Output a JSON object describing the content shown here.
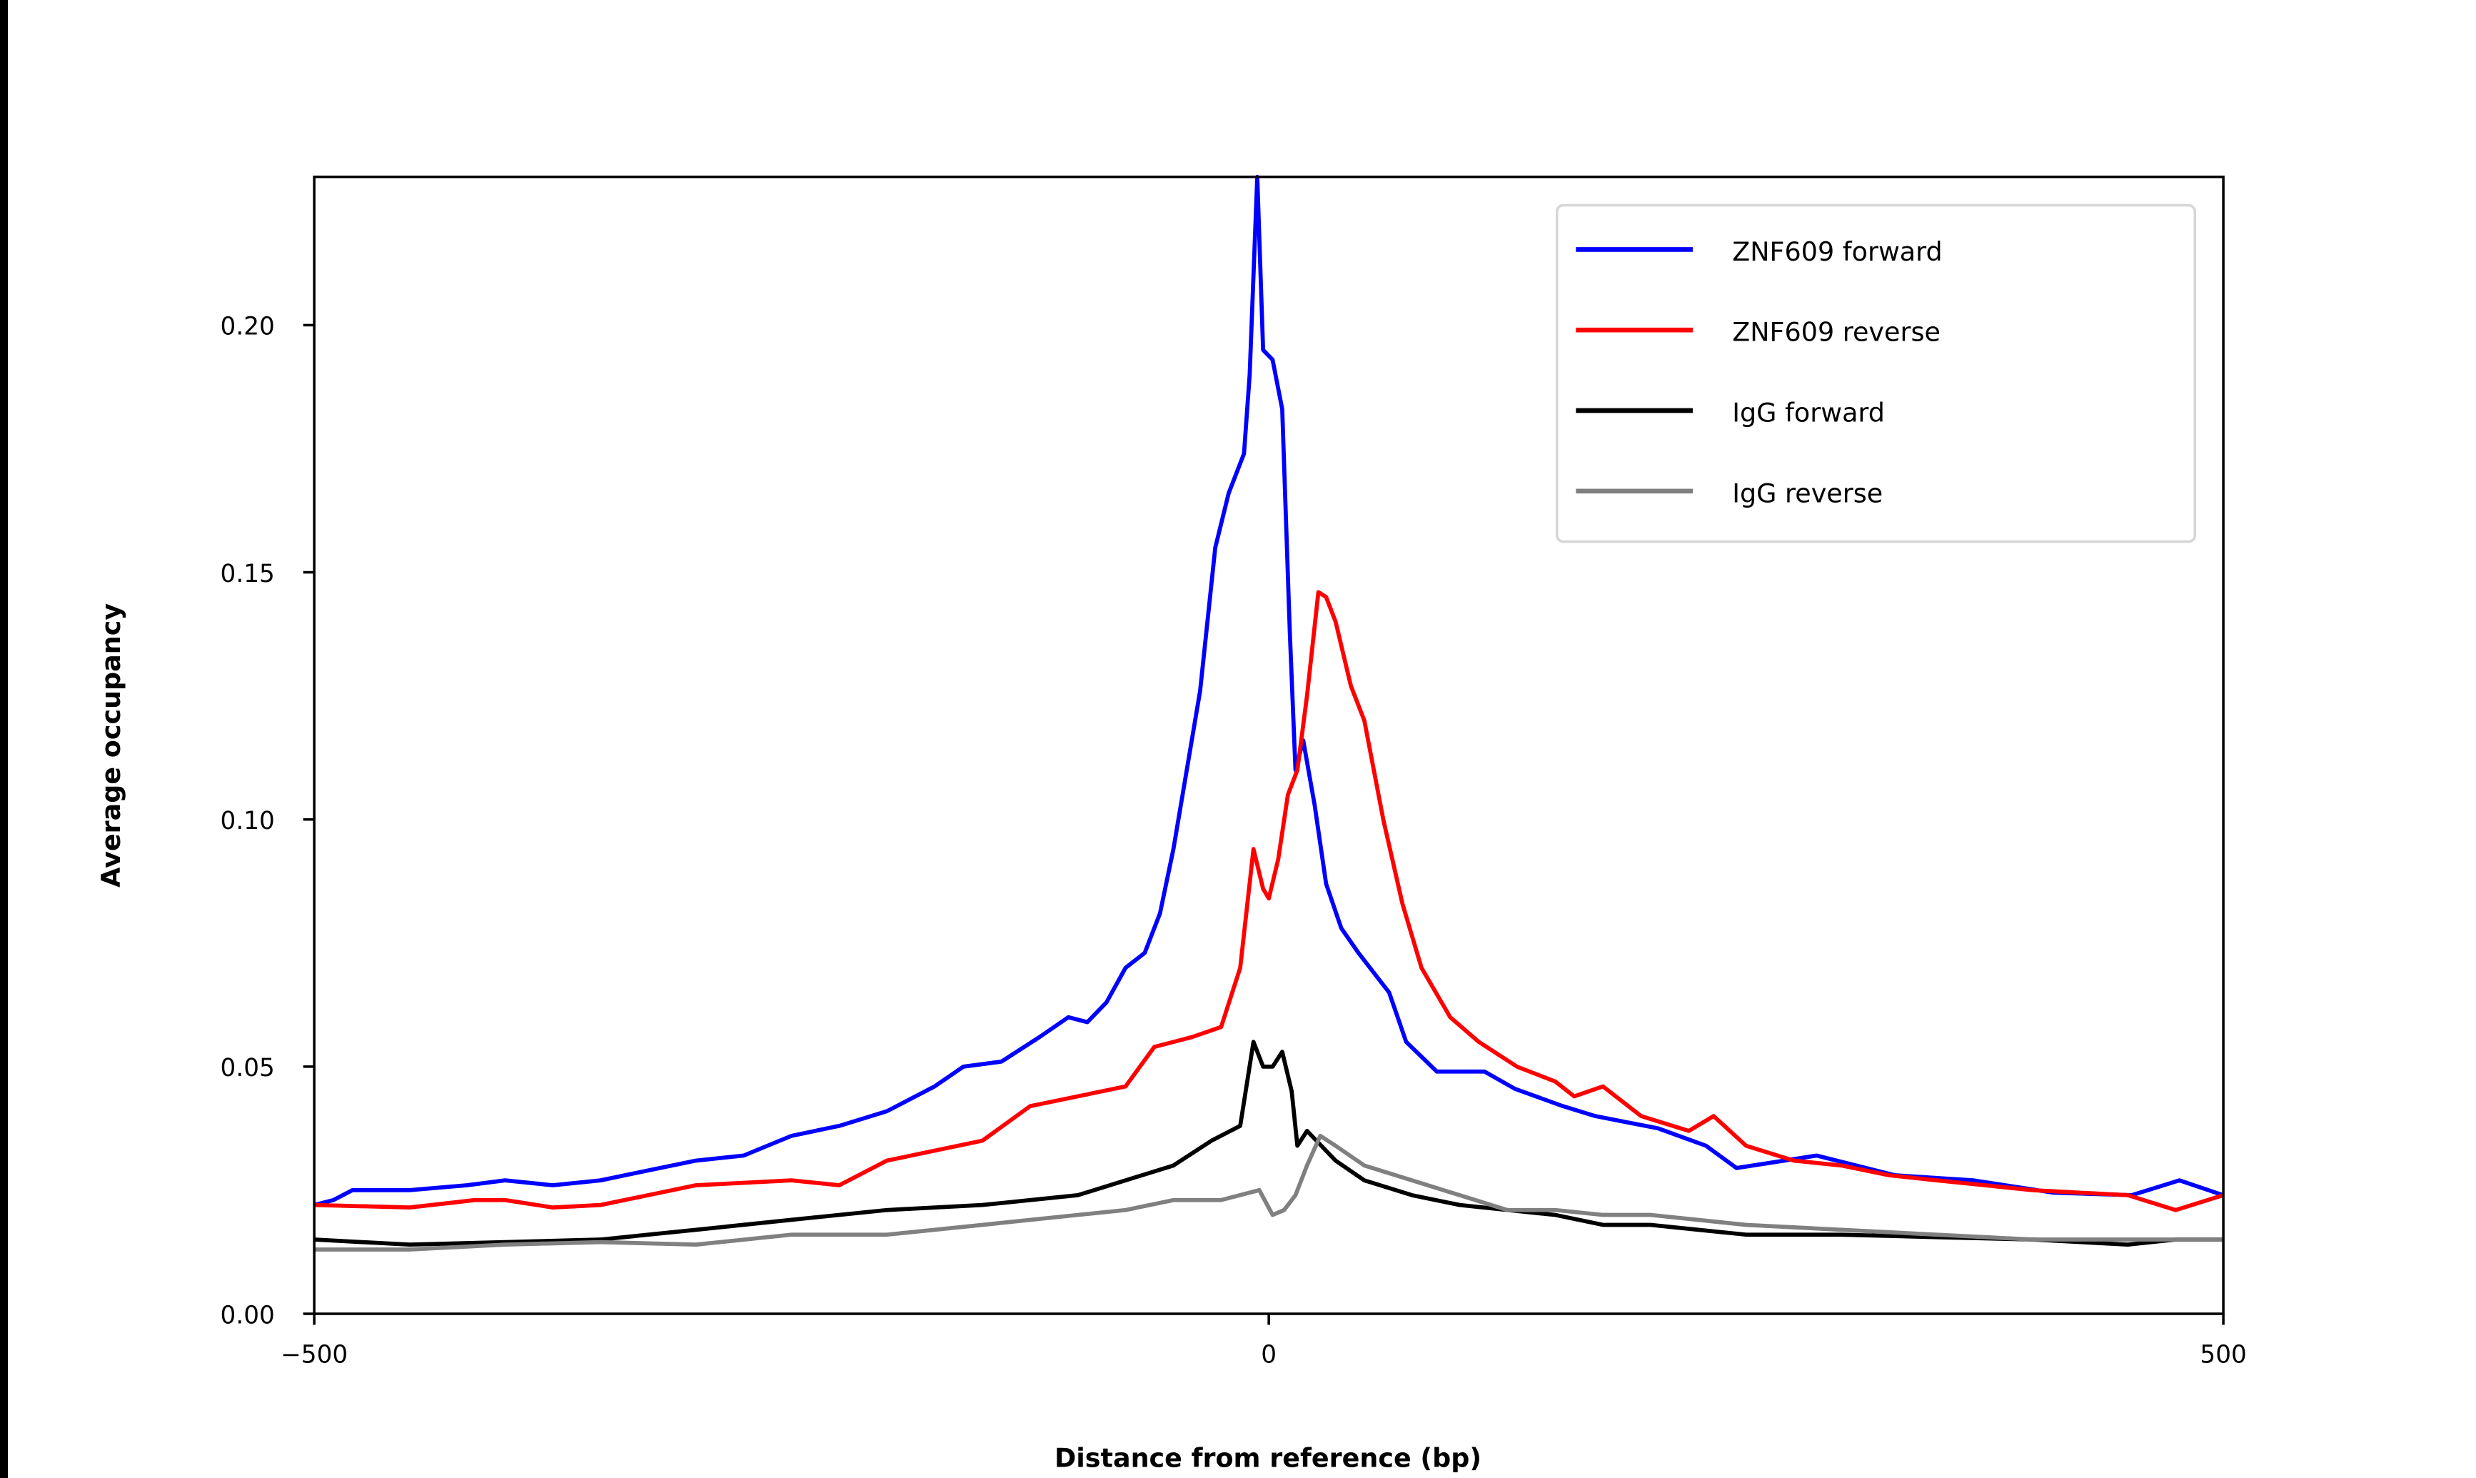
{
  "chart_data": {
    "type": "line",
    "title": "",
    "xlabel": "Distance from reference (bp)",
    "ylabel": "Average occupancy",
    "xlim": [
      -500,
      500
    ],
    "ylim": [
      0,
      0.23
    ],
    "xticks": [
      -500,
      0,
      500
    ],
    "xtick_labels": [
      "−500",
      "0",
      "500"
    ],
    "yticks": [
      0,
      0.05,
      0.1,
      0.15,
      0.2
    ],
    "ytick_labels": [
      "0.00",
      "0.05",
      "0.10",
      "0.15",
      "0.20"
    ],
    "grid": false,
    "legend_position": "top-right",
    "series": [
      {
        "name": "ZNF609 forward",
        "color": "#0000ff",
        "x": [
          -500,
          -490,
          -480,
          -450,
          -420,
          -400,
          -375,
          -350,
          -325,
          -300,
          -275,
          -250,
          -225,
          -200,
          -175,
          -160,
          -140,
          -120,
          -105,
          -95,
          -85,
          -75,
          -65,
          -57,
          -50,
          -36,
          -28,
          -21,
          -13,
          -10,
          -6,
          -3,
          2,
          7,
          11,
          14,
          18,
          24,
          30,
          38,
          47,
          63,
          72,
          88,
          113,
          129,
          154,
          171,
          204,
          229,
          245,
          270,
          287,
          328,
          369,
          411,
          452,
          477,
          500
        ],
        "y": [
          0.022,
          0.023,
          0.025,
          0.025,
          0.026,
          0.027,
          0.026,
          0.027,
          0.029,
          0.031,
          0.032,
          0.036,
          0.038,
          0.041,
          0.046,
          0.05,
          0.051,
          0.056,
          0.06,
          0.059,
          0.063,
          0.07,
          0.073,
          0.081,
          0.094,
          0.126,
          0.155,
          0.166,
          0.174,
          0.19,
          0.23,
          0.195,
          0.193,
          0.183,
          0.138,
          0.11,
          0.116,
          0.103,
          0.087,
          0.078,
          0.073,
          0.065,
          0.055,
          0.049,
          0.049,
          0.0455,
          0.042,
          0.04,
          0.0375,
          0.034,
          0.0295,
          0.031,
          0.032,
          0.028,
          0.027,
          0.0245,
          0.024,
          0.027,
          0.024
        ]
      },
      {
        "name": "ZNF609 reverse",
        "color": "#ff0000",
        "x": [
          -500,
          -450,
          -416,
          -400,
          -375,
          -350,
          -300,
          -250,
          -225,
          -200,
          -150,
          -125,
          -100,
          -75,
          -60,
          -40,
          -25,
          -15,
          -8,
          -3,
          0,
          5,
          10,
          15,
          20,
          26,
          30,
          35,
          43,
          50,
          60,
          70,
          80,
          95,
          110,
          130,
          150,
          160,
          175,
          195,
          220,
          233,
          250,
          275,
          300,
          325,
          350,
          400,
          450,
          475,
          500
        ],
        "y": [
          0.022,
          0.0215,
          0.023,
          0.023,
          0.0215,
          0.022,
          0.026,
          0.027,
          0.026,
          0.031,
          0.035,
          0.042,
          0.044,
          0.046,
          0.054,
          0.056,
          0.058,
          0.07,
          0.094,
          0.086,
          0.084,
          0.092,
          0.105,
          0.11,
          0.125,
          0.146,
          0.145,
          0.14,
          0.127,
          0.12,
          0.1,
          0.083,
          0.07,
          0.06,
          0.055,
          0.05,
          0.047,
          0.044,
          0.046,
          0.04,
          0.037,
          0.04,
          0.034,
          0.031,
          0.03,
          0.028,
          0.027,
          0.025,
          0.024,
          0.021,
          0.024
        ]
      },
      {
        "name": "IgG forward",
        "color": "#000000",
        "x": [
          -500,
          -450,
          -400,
          -350,
          -300,
          -250,
          -200,
          -150,
          -100,
          -75,
          -50,
          -30,
          -15,
          -8,
          -3,
          2,
          7,
          12,
          15,
          20,
          25,
          35,
          50,
          75,
          100,
          125,
          150,
          175,
          200,
          225,
          250,
          300,
          350,
          400,
          450,
          475,
          500
        ],
        "y": [
          0.015,
          0.014,
          0.0145,
          0.015,
          0.017,
          0.019,
          0.021,
          0.022,
          0.024,
          0.027,
          0.03,
          0.035,
          0.038,
          0.055,
          0.05,
          0.05,
          0.053,
          0.045,
          0.034,
          0.037,
          0.035,
          0.031,
          0.027,
          0.024,
          0.022,
          0.021,
          0.02,
          0.018,
          0.018,
          0.017,
          0.016,
          0.016,
          0.0155,
          0.015,
          0.014,
          0.015,
          0.015
        ]
      },
      {
        "name": "IgG reverse",
        "color": "#808080",
        "x": [
          -500,
          -450,
          -400,
          -350,
          -300,
          -250,
          -200,
          -150,
          -100,
          -75,
          -50,
          -25,
          -5,
          2,
          8,
          14,
          20,
          27,
          35,
          50,
          75,
          100,
          125,
          150,
          175,
          200,
          250,
          300,
          350,
          400,
          450,
          500
        ],
        "y": [
          0.013,
          0.013,
          0.014,
          0.0145,
          0.014,
          0.016,
          0.016,
          0.018,
          0.02,
          0.021,
          0.023,
          0.023,
          0.025,
          0.02,
          0.021,
          0.024,
          0.03,
          0.036,
          0.034,
          0.03,
          0.027,
          0.024,
          0.021,
          0.021,
          0.02,
          0.02,
          0.018,
          0.017,
          0.016,
          0.015,
          0.015,
          0.015
        ]
      }
    ]
  }
}
